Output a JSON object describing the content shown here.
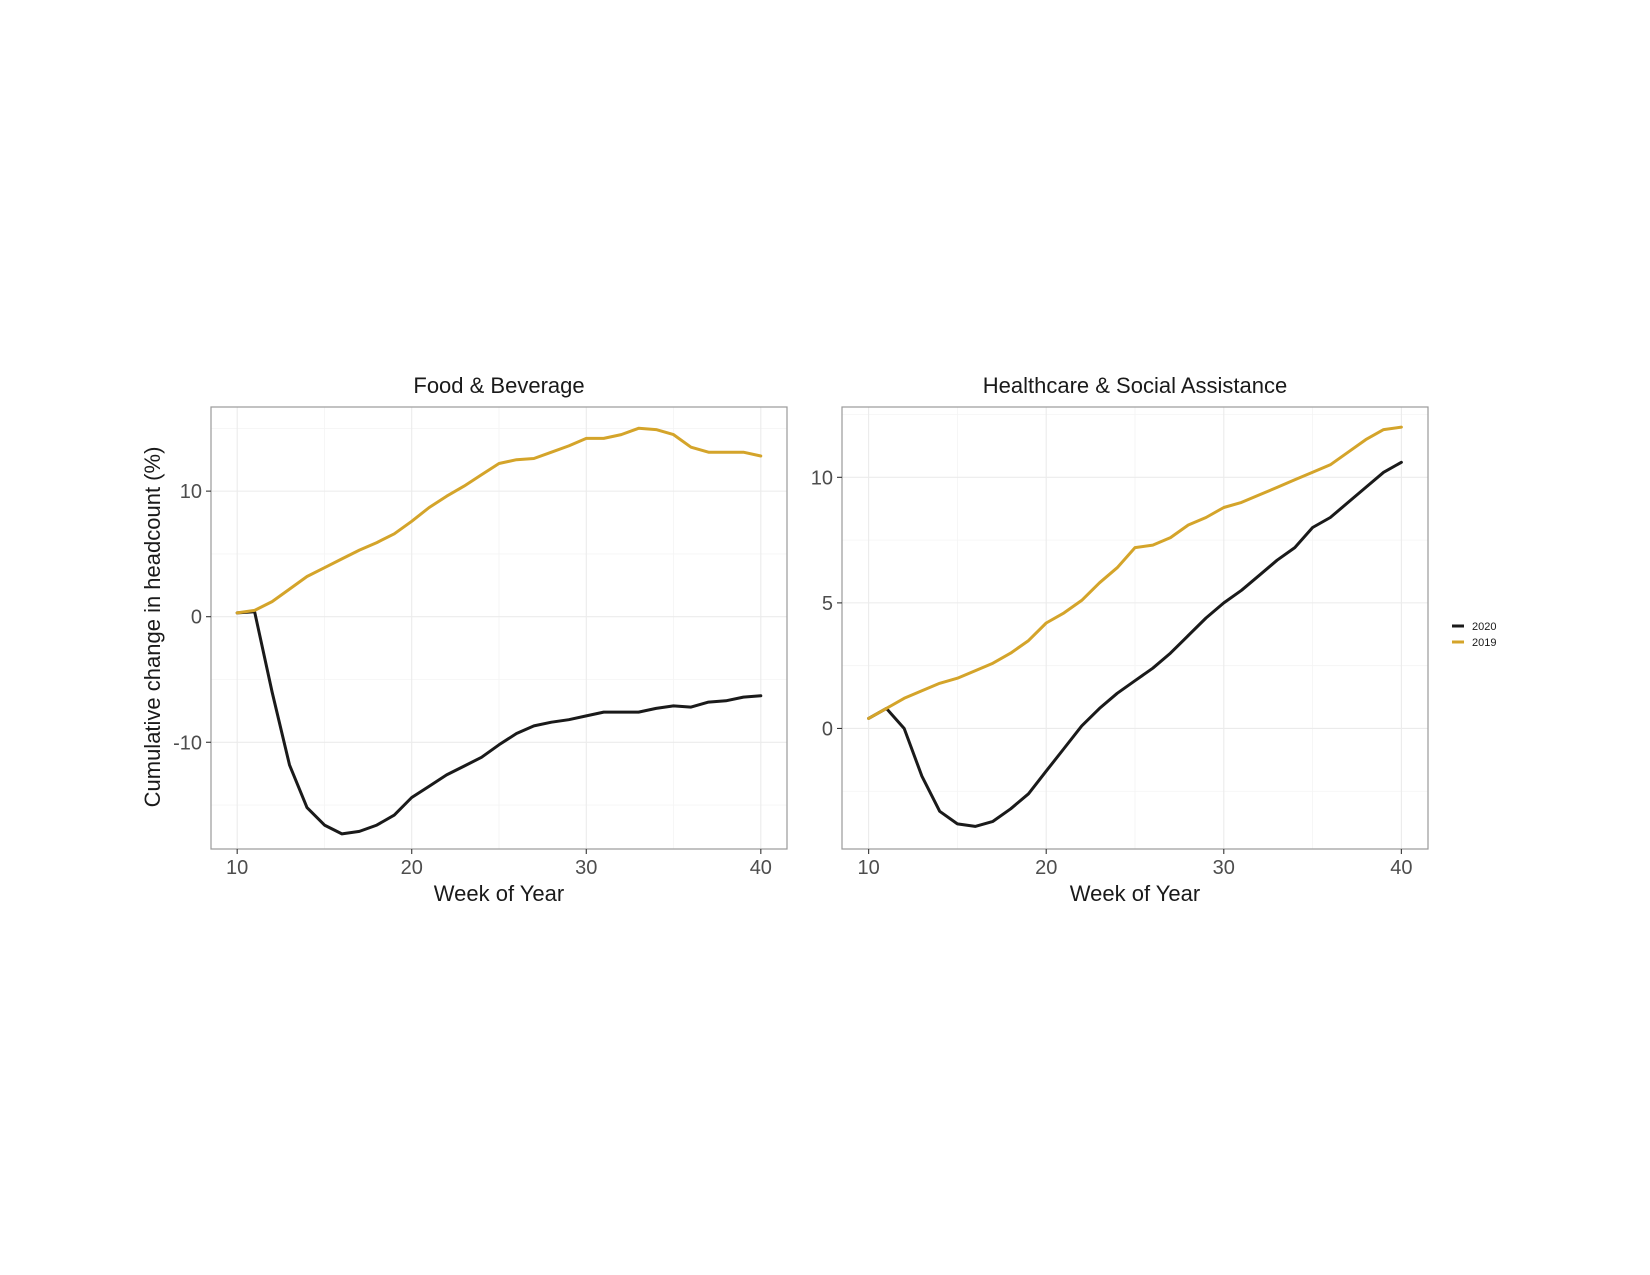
{
  "colors": {
    "2020": "#1a1a1a",
    "2019": "#d4a42a"
  },
  "shared": {
    "ylabel": "Cumulative change in headcount (%)",
    "xlabel": "Week of Year",
    "legend": {
      "position": "right",
      "entries": [
        "2020",
        "2019"
      ]
    }
  },
  "chart_data": [
    {
      "type": "line",
      "title": "Food & Beverage",
      "xlabel": "Week of Year",
      "ylabel": "Cumulative change in headcount (%)",
      "xlim": [
        8.5,
        41.5
      ],
      "ylim": [
        -18.5,
        16.7
      ],
      "xticks": [
        10,
        20,
        30,
        40
      ],
      "yticks": [
        -10,
        0,
        10
      ],
      "grid": true,
      "x": [
        10,
        11,
        12,
        13,
        14,
        15,
        16,
        17,
        18,
        19,
        20,
        21,
        22,
        23,
        24,
        25,
        26,
        27,
        28,
        29,
        30,
        31,
        32,
        33,
        34,
        35,
        36,
        37,
        38,
        39,
        40
      ],
      "series": [
        {
          "name": "2020",
          "values": [
            0.3,
            0.4,
            -6.0,
            -11.8,
            -15.2,
            -16.6,
            -17.3,
            -17.1,
            -16.6,
            -15.8,
            -14.4,
            -13.5,
            -12.6,
            -11.9,
            -11.2,
            -10.2,
            -9.3,
            -8.7,
            -8.4,
            -8.2,
            -7.9,
            -7.6,
            -7.6,
            -7.6,
            -7.3,
            -7.1,
            -7.2,
            -6.8,
            -6.7,
            -6.4,
            -6.3
          ]
        },
        {
          "name": "2019",
          "values": [
            0.3,
            0.5,
            1.2,
            2.2,
            3.2,
            3.9,
            4.6,
            5.3,
            5.9,
            6.6,
            7.6,
            8.7,
            9.6,
            10.4,
            11.3,
            12.2,
            12.5,
            12.6,
            13.1,
            13.6,
            14.2,
            14.2,
            14.5,
            15.0,
            14.9,
            14.5,
            13.5,
            13.1,
            13.1,
            13.1,
            12.8
          ]
        }
      ]
    },
    {
      "type": "line",
      "title": "Healthcare & Social Assistance",
      "xlabel": "Week of Year",
      "ylabel": "",
      "xlim": [
        8.5,
        41.5
      ],
      "ylim": [
        -4.8,
        12.8
      ],
      "xticks": [
        10,
        20,
        30,
        40
      ],
      "yticks": [
        0,
        5,
        10
      ],
      "grid": true,
      "x": [
        10,
        11,
        12,
        13,
        14,
        15,
        16,
        17,
        18,
        19,
        20,
        21,
        22,
        23,
        24,
        25,
        26,
        27,
        28,
        29,
        30,
        31,
        32,
        33,
        34,
        35,
        36,
        37,
        38,
        39,
        40
      ],
      "series": [
        {
          "name": "2020",
          "values": [
            0.4,
            0.8,
            0.0,
            -1.9,
            -3.3,
            -3.8,
            -3.9,
            -3.7,
            -3.2,
            -2.6,
            -1.7,
            -0.8,
            0.1,
            0.8,
            1.4,
            1.9,
            2.4,
            3.0,
            3.7,
            4.4,
            5.0,
            5.5,
            6.1,
            6.7,
            7.2,
            8.0,
            8.4,
            9.0,
            9.6,
            10.2,
            10.6
          ]
        },
        {
          "name": "2019",
          "values": [
            0.4,
            0.8,
            1.2,
            1.5,
            1.8,
            2.0,
            2.3,
            2.6,
            3.0,
            3.5,
            4.2,
            4.6,
            5.1,
            5.8,
            6.4,
            7.2,
            7.3,
            7.6,
            8.1,
            8.4,
            8.8,
            9.0,
            9.3,
            9.6,
            9.9,
            10.2,
            10.5,
            11.0,
            11.5,
            11.9,
            12.0
          ]
        }
      ]
    }
  ]
}
